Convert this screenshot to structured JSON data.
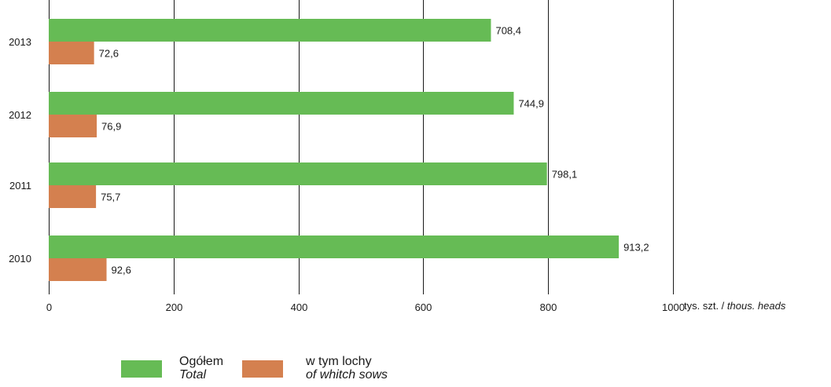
{
  "chart_data": {
    "type": "bar",
    "orientation": "horizontal",
    "categories": [
      "2013",
      "2012",
      "2011",
      "2010"
    ],
    "series": [
      {
        "name": "Ogółem / Total",
        "color": "#66bb55",
        "values": [
          708.4,
          744.9,
          798.1,
          913.2
        ],
        "labels": [
          "708,4",
          "744,9",
          "798,1",
          "913,2"
        ]
      },
      {
        "name": "w tym lochy / of whitch sows",
        "color": "#d4804f",
        "values": [
          72.6,
          76.9,
          75.7,
          92.6
        ],
        "labels": [
          "72,6",
          "76,9",
          "75,7",
          "92,6"
        ]
      }
    ],
    "xlim": [
      0,
      1000
    ],
    "xticks": [
      "0",
      "200",
      "400",
      "600",
      "800",
      "1000"
    ],
    "grid": "vertical",
    "legend_position": "bottom",
    "unit_pl": "tys. szt. / ",
    "unit_en": "thous. heads"
  },
  "legend": {
    "total_pl": "Ogółem",
    "total_en": "Total",
    "sows_pl": "w tym lochy",
    "sows_en": "of whitch sows"
  }
}
